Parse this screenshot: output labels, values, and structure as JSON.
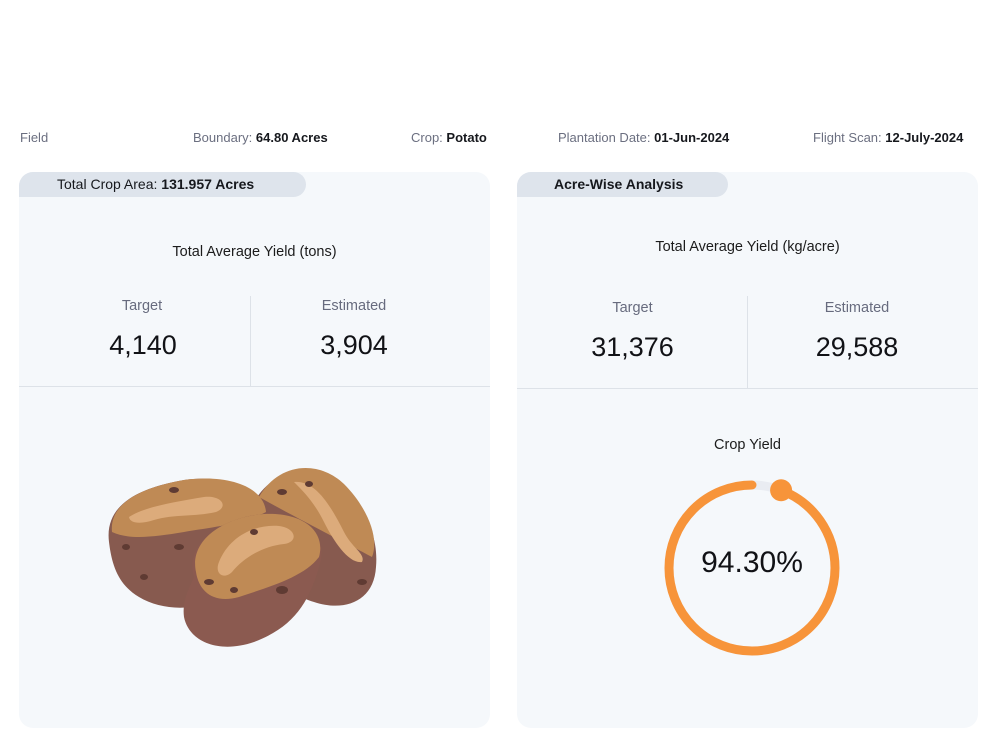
{
  "info_bar": {
    "field_label": "Field",
    "boundary_label": "Boundary:",
    "boundary_value": "64.80 Acres",
    "crop_label": "Crop:",
    "crop_value": "Potato",
    "plantation_label": "Plantation Date:",
    "plantation_value": "01-Jun-2024",
    "flight_label": "Flight Scan:",
    "flight_value": "12-July-2024"
  },
  "left_card": {
    "pill_label": "Total Crop Area:",
    "pill_value": "131.957 Acres",
    "yield_title": "Total Average Yield (tons)",
    "target_label": "Target",
    "target_value": "4,140",
    "estimated_label": "Estimated",
    "estimated_value": "3,904",
    "illustration": "potato-icon"
  },
  "right_card": {
    "pill_label": "Acre-Wise Analysis",
    "yield_title": "Total Average Yield (kg/acre)",
    "target_label": "Target",
    "target_value": "31,376",
    "estimated_label": "Estimated",
    "estimated_value": "29,588",
    "crop_yield_title": "Crop Yield",
    "crop_yield_text": "94.30%",
    "crop_yield_percent": 94.3
  },
  "colors": {
    "accent": "#f7943a",
    "gauge_track": "#e9ecf2",
    "card_bg": "#f5f8fb",
    "pill_bg": "#dee4ec"
  }
}
